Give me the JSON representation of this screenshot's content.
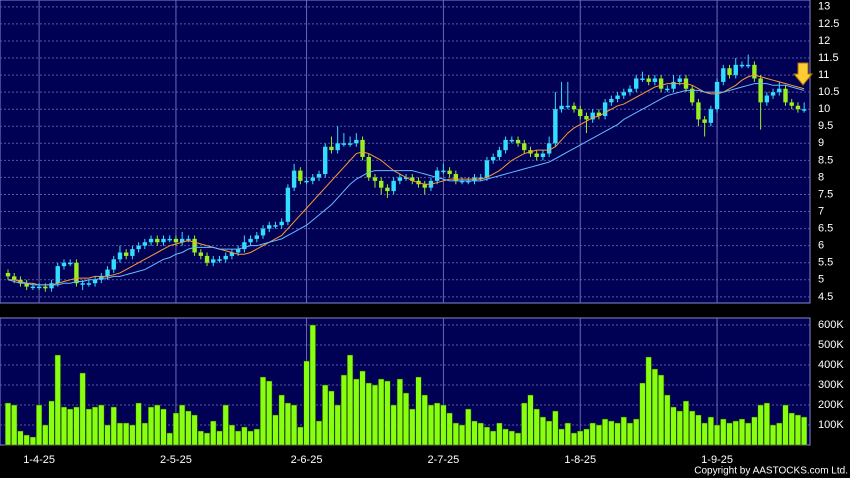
{
  "chart_data": {
    "type": "candlestick",
    "categories": [
      null,
      null,
      null,
      null,
      null,
      "1-4-25",
      null,
      null,
      null,
      null,
      null,
      null,
      null,
      null,
      null,
      null,
      null,
      null,
      null,
      null,
      null,
      null,
      null,
      null,
      null,
      null,
      null,
      "2-5-25",
      null,
      null,
      null,
      null,
      null,
      null,
      null,
      null,
      null,
      null,
      null,
      null,
      null,
      null,
      null,
      null,
      null,
      null,
      null,
      null,
      "2-6-25",
      null,
      null,
      null,
      null,
      null,
      null,
      null,
      null,
      null,
      null,
      null,
      null,
      null,
      null,
      null,
      null,
      null,
      null,
      null,
      null,
      null,
      "2-7-25",
      null,
      null,
      null,
      null,
      null,
      null,
      null,
      null,
      null,
      null,
      null,
      null,
      null,
      null,
      null,
      null,
      null,
      null,
      null,
      null,
      null,
      "1-8-25",
      null,
      null,
      null,
      null,
      null,
      null,
      null,
      null,
      null,
      null,
      null,
      null,
      null,
      null,
      null,
      null,
      null,
      null,
      null,
      null,
      null,
      "1-9-25",
      null,
      null,
      null,
      null,
      null,
      null,
      null,
      null,
      null,
      null,
      null,
      null,
      null,
      null
    ],
    "ohlc": [
      [
        5.2,
        5.3,
        5.0,
        5.1
      ],
      [
        5.1,
        5.2,
        4.9,
        5.0
      ],
      [
        5.0,
        5.1,
        4.8,
        4.9
      ],
      [
        4.9,
        5.0,
        4.7,
        4.8
      ],
      [
        4.8,
        4.9,
        4.7,
        4.8
      ],
      [
        4.8,
        4.9,
        4.7,
        4.8
      ],
      [
        4.8,
        4.9,
        4.65,
        4.75
      ],
      [
        4.75,
        5.0,
        4.65,
        4.9
      ],
      [
        4.9,
        5.5,
        4.8,
        5.4
      ],
      [
        5.4,
        5.6,
        5.3,
        5.5
      ],
      [
        5.5,
        5.6,
        5.4,
        5.5
      ],
      [
        5.5,
        5.6,
        4.8,
        4.9
      ],
      [
        4.9,
        5.0,
        4.7,
        4.9
      ],
      [
        4.9,
        5.0,
        4.8,
        4.9
      ],
      [
        4.9,
        5.1,
        4.8,
        5.0
      ],
      [
        5.0,
        5.2,
        4.9,
        5.1
      ],
      [
        5.1,
        5.4,
        5.0,
        5.3
      ],
      [
        5.3,
        5.7,
        5.2,
        5.6
      ],
      [
        5.6,
        6.0,
        5.5,
        5.8
      ],
      [
        5.8,
        5.9,
        5.6,
        5.7
      ],
      [
        5.7,
        6.0,
        5.6,
        5.9
      ],
      [
        5.9,
        6.1,
        5.8,
        6.0
      ],
      [
        6.0,
        6.2,
        5.9,
        6.1
      ],
      [
        6.1,
        6.3,
        6.0,
        6.2
      ],
      [
        6.2,
        6.3,
        6.0,
        6.1
      ],
      [
        6.1,
        6.3,
        6.0,
        6.2
      ],
      [
        6.2,
        6.3,
        6.1,
        6.2
      ],
      [
        6.2,
        6.3,
        6.0,
        6.1
      ],
      [
        6.1,
        6.4,
        6.0,
        6.2
      ],
      [
        6.2,
        6.3,
        6.1,
        6.2
      ],
      [
        6.2,
        6.3,
        5.7,
        5.8
      ],
      [
        5.8,
        5.9,
        5.6,
        5.7
      ],
      [
        5.7,
        5.8,
        5.4,
        5.5
      ],
      [
        5.5,
        5.7,
        5.4,
        5.6
      ],
      [
        5.6,
        5.7,
        5.5,
        5.6
      ],
      [
        5.6,
        5.8,
        5.5,
        5.7
      ],
      [
        5.7,
        5.9,
        5.6,
        5.8
      ],
      [
        5.8,
        6.0,
        5.7,
        5.9
      ],
      [
        5.9,
        6.3,
        5.8,
        6.1
      ],
      [
        6.1,
        6.3,
        6.0,
        6.2
      ],
      [
        6.2,
        6.4,
        6.1,
        6.3
      ],
      [
        6.3,
        6.6,
        6.2,
        6.5
      ],
      [
        6.5,
        6.7,
        6.4,
        6.6
      ],
      [
        6.6,
        6.7,
        6.5,
        6.6
      ],
      [
        6.6,
        6.8,
        6.5,
        6.7
      ],
      [
        6.7,
        7.8,
        6.6,
        7.7
      ],
      [
        7.7,
        8.4,
        7.6,
        8.2
      ],
      [
        8.2,
        8.3,
        7.8,
        7.9
      ],
      [
        7.9,
        8.0,
        7.8,
        7.9
      ],
      [
        7.9,
        8.1,
        7.8,
        8.0
      ],
      [
        8.0,
        8.2,
        7.9,
        8.1
      ],
      [
        8.1,
        9.0,
        8.0,
        8.9
      ],
      [
        8.9,
        9.2,
        8.7,
        8.8
      ],
      [
        8.8,
        9.5,
        8.7,
        9.0
      ],
      [
        9.0,
        9.3,
        8.9,
        9.0
      ],
      [
        9.0,
        9.2,
        8.9,
        9.0
      ],
      [
        9.0,
        9.3,
        8.9,
        9.1
      ],
      [
        9.1,
        9.2,
        8.5,
        8.6
      ],
      [
        8.6,
        8.7,
        7.9,
        8.0
      ],
      [
        8.0,
        8.1,
        7.7,
        7.9
      ],
      [
        7.9,
        8.0,
        7.5,
        7.7
      ],
      [
        7.7,
        7.8,
        7.4,
        7.6
      ],
      [
        7.6,
        8.0,
        7.5,
        7.9
      ],
      [
        7.9,
        8.1,
        7.8,
        8.0
      ],
      [
        8.0,
        8.1,
        7.9,
        8.0
      ],
      [
        8.0,
        8.1,
        7.8,
        7.9
      ],
      [
        7.9,
        8.0,
        7.7,
        7.8
      ],
      [
        7.8,
        7.9,
        7.5,
        7.7
      ],
      [
        7.7,
        8.0,
        7.6,
        7.9
      ],
      [
        7.9,
        8.3,
        7.8,
        8.2
      ],
      [
        8.2,
        8.4,
        8.1,
        8.2
      ],
      [
        8.2,
        8.3,
        8.0,
        8.1
      ],
      [
        8.1,
        8.2,
        7.8,
        7.9
      ],
      [
        7.9,
        8.0,
        7.8,
        7.9
      ],
      [
        7.9,
        8.0,
        7.8,
        7.9
      ],
      [
        7.9,
        8.1,
        7.8,
        8.0
      ],
      [
        8.0,
        8.1,
        7.9,
        8.0
      ],
      [
        8.0,
        8.6,
        7.9,
        8.5
      ],
      [
        8.5,
        8.7,
        8.4,
        8.6
      ],
      [
        8.6,
        8.9,
        8.5,
        8.8
      ],
      [
        8.8,
        9.2,
        8.7,
        9.1
      ],
      [
        9.1,
        9.2,
        9.0,
        9.1
      ],
      [
        9.1,
        9.2,
        8.9,
        9.0
      ],
      [
        9.0,
        9.1,
        8.7,
        8.8
      ],
      [
        8.8,
        8.9,
        8.6,
        8.7
      ],
      [
        8.7,
        8.8,
        8.5,
        8.6
      ],
      [
        8.6,
        8.8,
        8.5,
        8.7
      ],
      [
        8.7,
        9.2,
        8.6,
        9.0
      ],
      [
        9.0,
        10.5,
        8.9,
        10.0
      ],
      [
        10.0,
        10.8,
        9.9,
        10.1
      ],
      [
        10.1,
        10.8,
        10.0,
        10.1
      ],
      [
        10.1,
        10.2,
        9.9,
        10.0
      ],
      [
        10.0,
        10.1,
        9.7,
        9.8
      ],
      [
        9.8,
        9.9,
        9.3,
        9.7
      ],
      [
        9.7,
        10.0,
        9.6,
        9.9
      ],
      [
        9.9,
        10.0,
        9.7,
        9.8
      ],
      [
        9.8,
        10.3,
        9.7,
        10.2
      ],
      [
        10.2,
        10.4,
        10.1,
        10.3
      ],
      [
        10.3,
        10.5,
        10.2,
        10.4
      ],
      [
        10.4,
        10.6,
        10.3,
        10.5
      ],
      [
        10.5,
        10.7,
        10.4,
        10.6
      ],
      [
        10.6,
        11.0,
        10.5,
        10.9
      ],
      [
        10.9,
        11.1,
        10.8,
        10.9
      ],
      [
        10.9,
        11.0,
        10.7,
        10.8
      ],
      [
        10.8,
        11.0,
        10.7,
        10.9
      ],
      [
        10.9,
        11.0,
        10.5,
        10.6
      ],
      [
        10.6,
        10.7,
        10.5,
        10.6
      ],
      [
        10.6,
        11.0,
        10.5,
        10.8
      ],
      [
        10.8,
        11.0,
        10.7,
        10.9
      ],
      [
        10.9,
        11.0,
        10.5,
        10.6
      ],
      [
        10.6,
        10.7,
        10.1,
        10.2
      ],
      [
        10.2,
        10.3,
        9.5,
        9.7
      ],
      [
        9.7,
        9.8,
        9.2,
        9.6
      ],
      [
        9.6,
        10.1,
        9.5,
        10.0
      ],
      [
        10.0,
        10.9,
        9.9,
        10.8
      ],
      [
        10.8,
        11.3,
        10.7,
        11.2
      ],
      [
        11.2,
        11.3,
        10.9,
        11.0
      ],
      [
        11.0,
        11.5,
        10.9,
        11.3
      ],
      [
        11.3,
        11.4,
        11.2,
        11.3
      ],
      [
        11.3,
        11.6,
        11.2,
        11.3
      ],
      [
        11.3,
        11.4,
        10.8,
        10.9
      ],
      [
        10.9,
        11.0,
        9.4,
        10.2
      ],
      [
        10.2,
        10.5,
        10.1,
        10.4
      ],
      [
        10.4,
        10.6,
        10.3,
        10.5
      ],
      [
        10.5,
        10.8,
        10.4,
        10.6
      ],
      [
        10.6,
        10.7,
        10.1,
        10.2
      ],
      [
        10.2,
        10.3,
        10.0,
        10.1
      ],
      [
        10.1,
        10.2,
        9.9,
        10.0
      ],
      [
        10.0,
        10.2,
        9.9,
        10.0
      ]
    ],
    "up_color": "#33ddff",
    "down_color": "#99ee22",
    "ylim": [
      4.32,
      13.2
    ],
    "yticks": [
      4.5,
      5,
      5.5,
      6,
      6.5,
      7,
      7.5,
      8,
      8.5,
      9,
      9.5,
      10,
      10.5,
      11,
      11.5,
      12,
      12.5,
      13
    ],
    "grid": true,
    "lines": [
      {
        "color": "#ff9933",
        "values": [
          5.0,
          5.0,
          4.95,
          4.9,
          4.9,
          4.85,
          4.85,
          4.85,
          4.9,
          4.95,
          5.0,
          5.05,
          5.05,
          5.05,
          5.1,
          5.1,
          5.1,
          5.15,
          5.2,
          5.3,
          5.4,
          5.5,
          5.6,
          5.7,
          5.8,
          5.9,
          6.0,
          6.05,
          6.1,
          6.15,
          6.1,
          6.05,
          6.0,
          5.95,
          5.9,
          5.85,
          5.8,
          5.75,
          5.75,
          5.8,
          5.9,
          6.0,
          6.1,
          6.2,
          6.3,
          6.5,
          6.7,
          6.9,
          7.1,
          7.3,
          7.5,
          7.7,
          7.9,
          8.1,
          8.3,
          8.5,
          8.7,
          8.75,
          8.7,
          8.6,
          8.5,
          8.35,
          8.2,
          8.1,
          8.0,
          7.9,
          7.85,
          7.8,
          7.8,
          7.85,
          7.9,
          7.95,
          7.95,
          7.95,
          7.95,
          7.95,
          7.95,
          8.0,
          8.1,
          8.2,
          8.35,
          8.5,
          8.6,
          8.7,
          8.75,
          8.8,
          8.8,
          8.8,
          8.9,
          9.1,
          9.3,
          9.45,
          9.55,
          9.65,
          9.75,
          9.8,
          9.9,
          10.0,
          10.1,
          10.15,
          10.25,
          10.35,
          10.45,
          10.55,
          10.65,
          10.7,
          10.75,
          10.75,
          10.75,
          10.75,
          10.7,
          10.6,
          10.5,
          10.45,
          10.45,
          10.5,
          10.6,
          10.7,
          10.85,
          10.95,
          11.0,
          10.95,
          10.9,
          10.85,
          10.8,
          10.75,
          10.7,
          10.65,
          10.6
        ]
      },
      {
        "color": "#66bbff",
        "values": [
          5.0,
          4.95,
          4.9,
          4.9,
          4.85,
          4.85,
          4.85,
          4.85,
          4.85,
          4.9,
          4.9,
          4.95,
          4.95,
          5.0,
          5.0,
          5.05,
          5.05,
          5.1,
          5.1,
          5.15,
          5.2,
          5.25,
          5.3,
          5.4,
          5.5,
          5.6,
          5.65,
          5.75,
          5.8,
          5.9,
          5.95,
          5.95,
          5.95,
          5.95,
          5.9,
          5.9,
          5.9,
          5.9,
          5.95,
          6.0,
          6.0,
          6.05,
          6.1,
          6.15,
          6.2,
          6.3,
          6.4,
          6.5,
          6.6,
          6.75,
          6.9,
          7.05,
          7.2,
          7.4,
          7.6,
          7.8,
          7.95,
          8.05,
          8.15,
          8.2,
          8.2,
          8.2,
          8.2,
          8.2,
          8.2,
          8.2,
          8.15,
          8.1,
          8.05,
          8.0,
          7.95,
          7.9,
          7.9,
          7.9,
          7.9,
          7.9,
          7.9,
          7.95,
          8.0,
          8.05,
          8.1,
          8.15,
          8.2,
          8.25,
          8.3,
          8.35,
          8.4,
          8.45,
          8.55,
          8.65,
          8.75,
          8.85,
          8.95,
          9.05,
          9.15,
          9.25,
          9.35,
          9.45,
          9.55,
          9.7,
          9.8,
          9.9,
          10.0,
          10.1,
          10.2,
          10.3,
          10.4,
          10.45,
          10.5,
          10.55,
          10.55,
          10.55,
          10.5,
          10.5,
          10.5,
          10.5,
          10.55,
          10.6,
          10.65,
          10.7,
          10.75,
          10.75,
          10.75,
          10.7,
          10.7,
          10.7,
          10.65,
          10.6,
          10.55
        ]
      }
    ],
    "volume": {
      "color": "#88ff11",
      "ylim": [
        0,
        635000
      ],
      "yticks": [
        {
          "value": 100000,
          "label": "100K"
        },
        {
          "value": 200000,
          "label": "200K"
        },
        {
          "value": 300000,
          "label": "300K"
        },
        {
          "value": 400000,
          "label": "400K"
        },
        {
          "value": 500000,
          "label": "500K"
        },
        {
          "value": 600000,
          "label": "600K"
        }
      ],
      "values": [
        210000,
        200000,
        70000,
        50000,
        40000,
        200000,
        100000,
        220000,
        450000,
        190000,
        180000,
        190000,
        360000,
        180000,
        190000,
        200000,
        100000,
        190000,
        110000,
        110000,
        100000,
        210000,
        110000,
        190000,
        200000,
        180000,
        60000,
        160000,
        200000,
        170000,
        150000,
        70000,
        60000,
        120000,
        70000,
        200000,
        100000,
        70000,
        90000,
        70000,
        80000,
        340000,
        320000,
        150000,
        250000,
        210000,
        200000,
        90000,
        420000,
        600000,
        120000,
        300000,
        270000,
        200000,
        350000,
        450000,
        330000,
        370000,
        310000,
        300000,
        330000,
        320000,
        200000,
        330000,
        260000,
        180000,
        340000,
        250000,
        200000,
        210000,
        200000,
        160000,
        110000,
        100000,
        180000,
        120000,
        110000,
        90000,
        70000,
        110000,
        80000,
        70000,
        60000,
        210000,
        250000,
        180000,
        140000,
        120000,
        170000,
        80000,
        110000,
        60000,
        70000,
        80000,
        110000,
        100000,
        130000,
        120000,
        110000,
        140000,
        110000,
        130000,
        310000,
        440000,
        380000,
        350000,
        250000,
        190000,
        170000,
        220000,
        170000,
        150000,
        110000,
        140000,
        100000,
        130000,
        110000,
        120000,
        130000,
        110000,
        140000,
        200000,
        210000,
        100000,
        110000,
        200000,
        160000,
        150000,
        140000
      ]
    },
    "copyright": "Copyright by AASTOCKS.com Ltd."
  }
}
